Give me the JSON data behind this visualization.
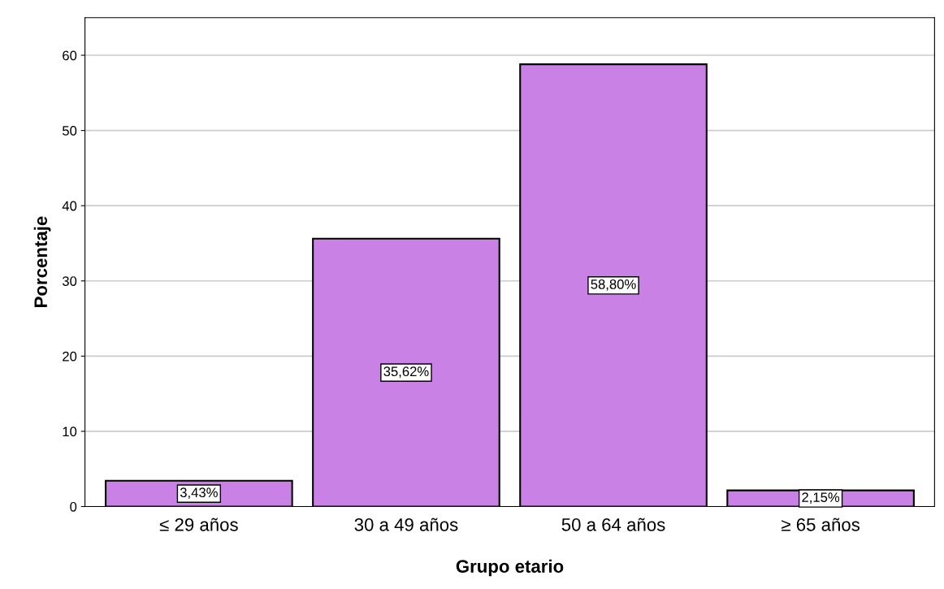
{
  "chart_data": {
    "type": "bar",
    "xlabel": "Grupo etario",
    "ylabel": "Porcentaje",
    "categories": [
      "≤ 29 años",
      "30 a 49 años",
      "50 a 64 años",
      "≥ 65 años"
    ],
    "values": [
      3.43,
      35.62,
      58.8,
      2.15
    ],
    "value_labels": [
      "3,43%",
      "35,62%",
      "58,80%",
      "2,15%"
    ],
    "color": "#c981e6",
    "ylim": [
      0,
      65
    ],
    "yticks": [
      0,
      10,
      20,
      30,
      40,
      50,
      60
    ],
    "grid": "y"
  }
}
